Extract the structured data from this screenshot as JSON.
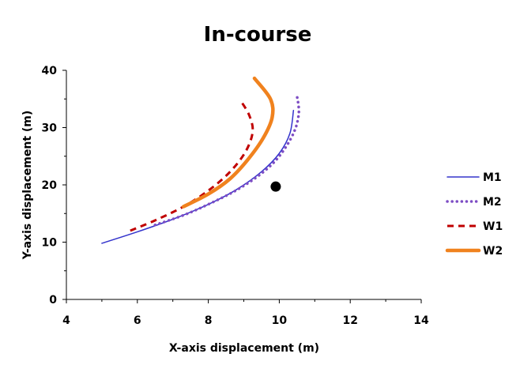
{
  "chart_data": {
    "type": "line",
    "title": "In-course",
    "xlabel": "X-axis displacement (m)",
    "ylabel": "Y-axis displacement (m)",
    "xlim": [
      4,
      14
    ],
    "ylim": [
      0,
      40
    ],
    "xticks": [
      "4",
      "6",
      "8",
      "10",
      "12",
      "14"
    ],
    "yticks": [
      "0",
      "10",
      "20",
      "30",
      "40"
    ],
    "grid": false,
    "legend_position": "right",
    "series": [
      {
        "name": "M1",
        "color": "#3333cc",
        "style": "solid",
        "points": [
          [
            5.0,
            9.8
          ],
          [
            6.0,
            11.8
          ],
          [
            7.0,
            14.0
          ],
          [
            8.0,
            16.6
          ],
          [
            8.8,
            19.2
          ],
          [
            9.5,
            22.3
          ],
          [
            10.0,
            25.5
          ],
          [
            10.3,
            29.0
          ],
          [
            10.4,
            33.0
          ]
        ]
      },
      {
        "name": "M2",
        "color": "#7d4dc4",
        "style": "dotted",
        "points": [
          [
            6.5,
            13.0
          ],
          [
            7.3,
            14.7
          ],
          [
            8.0,
            16.6
          ],
          [
            8.8,
            19.1
          ],
          [
            9.5,
            22.0
          ],
          [
            10.0,
            25.0
          ],
          [
            10.4,
            29.0
          ],
          [
            10.55,
            32.5
          ],
          [
            10.5,
            35.5
          ]
        ]
      },
      {
        "name": "W1",
        "color": "#c00000",
        "style": "dashed",
        "points": [
          [
            5.8,
            12.0
          ],
          [
            6.5,
            13.8
          ],
          [
            7.3,
            16.2
          ],
          [
            8.0,
            19.0
          ],
          [
            8.6,
            22.2
          ],
          [
            9.05,
            25.8
          ],
          [
            9.25,
            29.3
          ],
          [
            9.15,
            32.2
          ],
          [
            8.9,
            34.8
          ]
        ]
      },
      {
        "name": "W2",
        "color": "#f0821e",
        "style": "solid-thick",
        "points": [
          [
            7.3,
            16.2
          ],
          [
            8.0,
            18.4
          ],
          [
            8.6,
            21.0
          ],
          [
            9.1,
            24.3
          ],
          [
            9.55,
            28.2
          ],
          [
            9.8,
            31.8
          ],
          [
            9.75,
            35.0
          ],
          [
            9.3,
            38.6
          ]
        ]
      }
    ],
    "markers": [
      {
        "x": 9.9,
        "y": 19.7,
        "color": "#000000"
      }
    ]
  }
}
